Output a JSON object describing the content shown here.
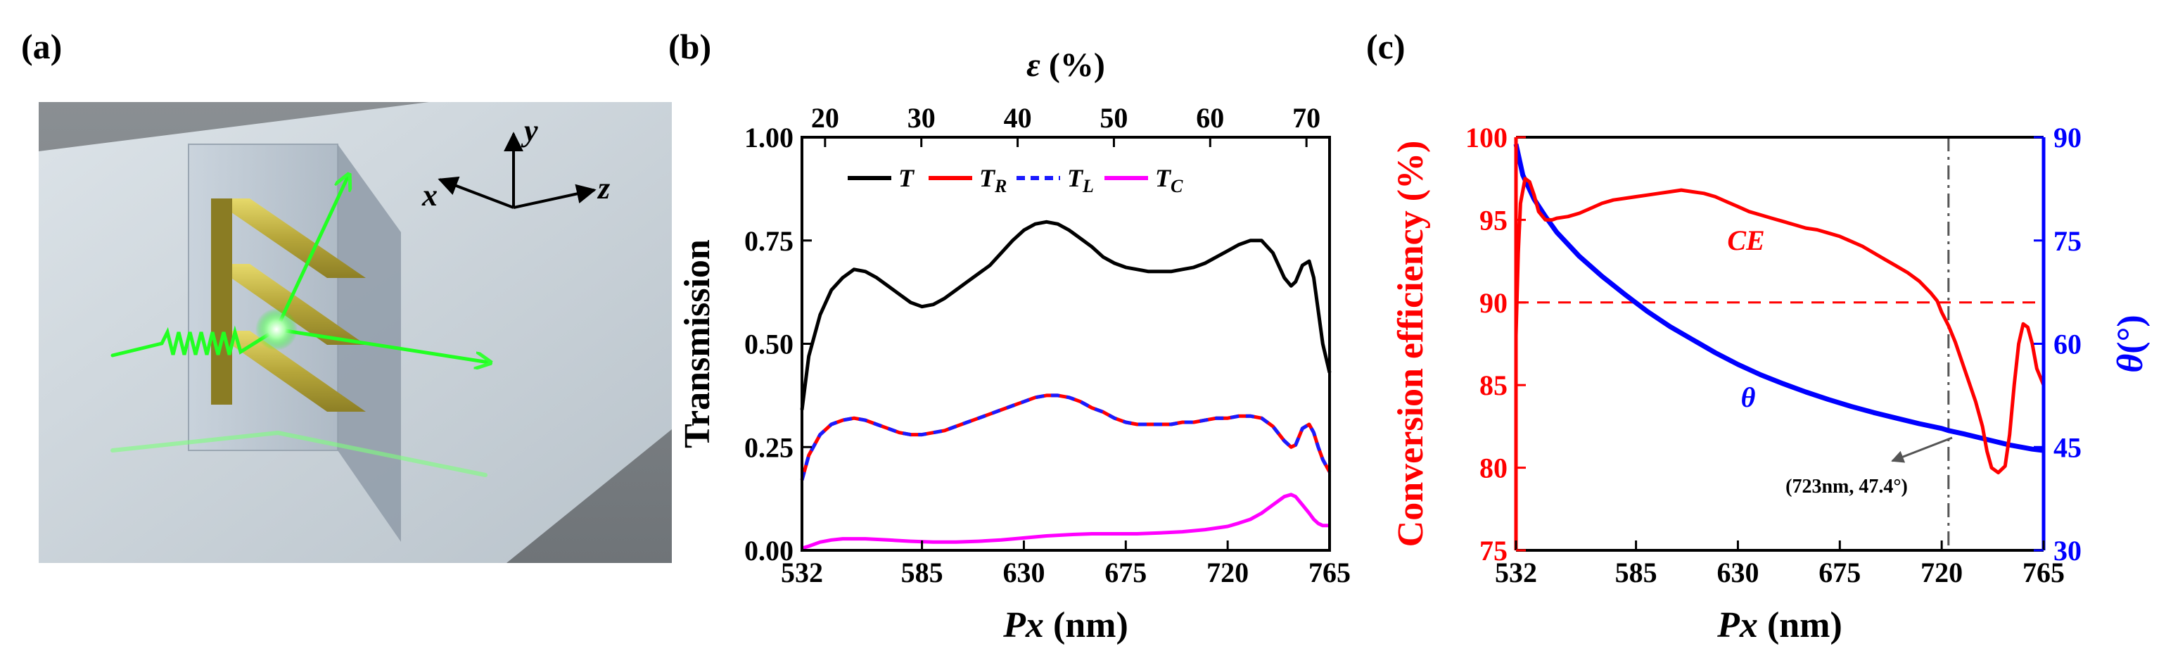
{
  "panels": {
    "a": {
      "label": "(a)",
      "axis_x": "x",
      "axis_y": "y",
      "axis_z": "z"
    },
    "b": {
      "label": "(b)"
    },
    "c": {
      "label": "(c)"
    }
  },
  "colors": {
    "T": "#000000",
    "TR": "#ff0000",
    "TL": "#1a1aff",
    "TC": "#ff00ff",
    "CE": "#ff0000",
    "theta": "#0000ff",
    "threshold": "#ff0000",
    "marker": "#555555"
  },
  "chart_data": [
    {
      "type": "line",
      "panel": "(b)",
      "xlabel_main": "Px",
      "xlabel_unit": "(nm)",
      "ylabel": "Transmission",
      "top_axis_label_symbol": "ε",
      "top_axis_label_unit": "(%)",
      "xlim": [
        532,
        765
      ],
      "ylim": [
        0,
        1
      ],
      "top_xlim": [
        17.6,
        72.4
      ],
      "x_ticks": [
        532,
        585,
        630,
        675,
        720,
        765
      ],
      "y_ticks": [
        "0.00",
        "0.25",
        "0.50",
        "0.75",
        "1.00"
      ],
      "top_ticks": [
        20,
        30,
        40,
        50,
        60,
        70
      ],
      "legend": [
        {
          "name": "T",
          "sub": ""
        },
        {
          "name": "T",
          "sub": "R"
        },
        {
          "name": "T",
          "sub": "L"
        },
        {
          "name": "T",
          "sub": "C"
        }
      ],
      "series": [
        {
          "name": "T",
          "x": [
            532,
            535,
            540,
            545,
            550,
            555,
            560,
            565,
            570,
            575,
            580,
            585,
            590,
            595,
            600,
            605,
            610,
            615,
            620,
            625,
            630,
            635,
            640,
            645,
            650,
            655,
            660,
            665,
            670,
            675,
            680,
            685,
            690,
            695,
            700,
            705,
            710,
            715,
            720,
            725,
            730,
            735,
            740,
            745,
            748,
            750,
            753,
            756,
            758,
            760,
            762,
            765
          ],
          "y": [
            0.34,
            0.47,
            0.57,
            0.63,
            0.66,
            0.68,
            0.675,
            0.66,
            0.64,
            0.62,
            0.6,
            0.59,
            0.595,
            0.61,
            0.63,
            0.65,
            0.67,
            0.69,
            0.72,
            0.75,
            0.775,
            0.79,
            0.795,
            0.79,
            0.775,
            0.755,
            0.735,
            0.71,
            0.695,
            0.685,
            0.68,
            0.675,
            0.675,
            0.675,
            0.68,
            0.685,
            0.695,
            0.71,
            0.725,
            0.74,
            0.75,
            0.75,
            0.72,
            0.66,
            0.64,
            0.65,
            0.69,
            0.7,
            0.66,
            0.58,
            0.5,
            0.43
          ]
        },
        {
          "name": "TR",
          "x": [
            532,
            535,
            540,
            545,
            550,
            555,
            560,
            565,
            570,
            575,
            580,
            585,
            590,
            595,
            600,
            605,
            610,
            615,
            620,
            625,
            630,
            635,
            640,
            645,
            650,
            655,
            660,
            665,
            670,
            675,
            680,
            685,
            690,
            695,
            700,
            705,
            710,
            715,
            720,
            725,
            730,
            735,
            740,
            745,
            748,
            750,
            753,
            756,
            758,
            760,
            762,
            765
          ],
          "y": [
            0.17,
            0.23,
            0.28,
            0.305,
            0.315,
            0.32,
            0.315,
            0.305,
            0.295,
            0.285,
            0.28,
            0.28,
            0.285,
            0.29,
            0.3,
            0.31,
            0.32,
            0.33,
            0.34,
            0.35,
            0.36,
            0.37,
            0.375,
            0.375,
            0.37,
            0.36,
            0.345,
            0.335,
            0.32,
            0.31,
            0.305,
            0.305,
            0.305,
            0.305,
            0.31,
            0.31,
            0.315,
            0.32,
            0.32,
            0.325,
            0.325,
            0.32,
            0.3,
            0.265,
            0.25,
            0.255,
            0.295,
            0.305,
            0.285,
            0.25,
            0.22,
            0.19
          ]
        },
        {
          "name": "TL",
          "x": [
            532,
            535,
            540,
            545,
            550,
            555,
            560,
            565,
            570,
            575,
            580,
            585,
            590,
            595,
            600,
            605,
            610,
            615,
            620,
            625,
            630,
            635,
            640,
            645,
            650,
            655,
            660,
            665,
            670,
            675,
            680,
            685,
            690,
            695,
            700,
            705,
            710,
            715,
            720,
            725,
            730,
            735,
            740,
            745,
            748,
            750,
            753,
            756,
            758,
            760,
            762,
            765
          ],
          "y": [
            0.17,
            0.23,
            0.28,
            0.305,
            0.315,
            0.32,
            0.315,
            0.305,
            0.295,
            0.285,
            0.28,
            0.28,
            0.285,
            0.29,
            0.3,
            0.31,
            0.32,
            0.33,
            0.34,
            0.35,
            0.36,
            0.37,
            0.375,
            0.375,
            0.37,
            0.36,
            0.345,
            0.335,
            0.32,
            0.31,
            0.305,
            0.305,
            0.305,
            0.305,
            0.31,
            0.31,
            0.315,
            0.32,
            0.32,
            0.325,
            0.325,
            0.32,
            0.3,
            0.265,
            0.25,
            0.255,
            0.295,
            0.305,
            0.285,
            0.25,
            0.22,
            0.19
          ]
        },
        {
          "name": "TC",
          "x": [
            532,
            535,
            540,
            545,
            550,
            560,
            570,
            580,
            590,
            600,
            610,
            620,
            630,
            640,
            650,
            660,
            670,
            680,
            690,
            700,
            710,
            720,
            725,
            730,
            735,
            740,
            745,
            748,
            750,
            753,
            756,
            758,
            760,
            762,
            765
          ],
          "y": [
            0.005,
            0.01,
            0.02,
            0.025,
            0.028,
            0.028,
            0.025,
            0.022,
            0.02,
            0.02,
            0.022,
            0.025,
            0.03,
            0.035,
            0.038,
            0.04,
            0.04,
            0.04,
            0.042,
            0.045,
            0.05,
            0.058,
            0.066,
            0.075,
            0.09,
            0.11,
            0.13,
            0.135,
            0.13,
            0.11,
            0.09,
            0.075,
            0.065,
            0.06,
            0.06
          ]
        }
      ]
    },
    {
      "type": "line",
      "panel": "(c)",
      "xlabel_main": "Px",
      "xlabel_unit": "(nm)",
      "ylabel_left": "Conversion efficiency (%)",
      "ylabel_right_symbol": "θ",
      "ylabel_right_unit": "(°)",
      "xlim": [
        532,
        765
      ],
      "ylim_left": [
        75,
        100
      ],
      "ylim_right": [
        30,
        90
      ],
      "x_ticks": [
        532,
        585,
        630,
        675,
        720,
        765
      ],
      "y_ticks_left": [
        75,
        80,
        85,
        90,
        95,
        100
      ],
      "y_ticks_right": [
        30,
        45,
        60,
        75,
        90
      ],
      "threshold_CE": 90,
      "vline_x": 723,
      "annotation": "(723nm, 47.4°)",
      "label_CE": "CE",
      "label_theta": "θ",
      "series": [
        {
          "name": "CE",
          "axis": "left",
          "x": [
            532,
            533,
            534,
            536,
            538,
            540,
            542,
            545,
            548,
            550,
            555,
            560,
            565,
            570,
            575,
            580,
            585,
            590,
            595,
            600,
            605,
            610,
            615,
            620,
            625,
            630,
            635,
            640,
            645,
            650,
            655,
            660,
            665,
            670,
            675,
            680,
            685,
            690,
            695,
            700,
            705,
            710,
            715,
            718,
            720,
            723,
            726,
            730,
            735,
            738,
            740,
            742,
            745,
            748,
            750,
            752,
            754,
            756,
            758,
            760,
            762,
            765
          ],
          "y": [
            88,
            93,
            96,
            97.5,
            97.3,
            96.5,
            95.5,
            95,
            95,
            95.1,
            95.2,
            95.4,
            95.7,
            96,
            96.2,
            96.3,
            96.4,
            96.5,
            96.6,
            96.7,
            96.8,
            96.7,
            96.6,
            96.4,
            96.1,
            95.8,
            95.5,
            95.3,
            95.1,
            94.9,
            94.7,
            94.5,
            94.4,
            94.2,
            94,
            93.7,
            93.4,
            93,
            92.6,
            92.2,
            91.8,
            91.3,
            90.6,
            90.1,
            89.4,
            88.6,
            87.6,
            86,
            84,
            82.5,
            81,
            80,
            79.7,
            80.1,
            82,
            85,
            87.5,
            88.7,
            88.5,
            87.5,
            86,
            85
          ]
        },
        {
          "name": "theta",
          "axis": "right",
          "x": [
            532,
            535,
            540,
            545,
            550,
            560,
            570,
            580,
            590,
            600,
            610,
            620,
            630,
            640,
            650,
            660,
            670,
            680,
            690,
            700,
            710,
            720,
            723,
            730,
            740,
            750,
            760,
            765
          ],
          "y": [
            89,
            84.5,
            81,
            78.5,
            76.2,
            72.7,
            69.8,
            67.2,
            64.7,
            62.5,
            60.6,
            58.7,
            57,
            55.5,
            54.2,
            53,
            51.9,
            50.9,
            50,
            49.2,
            48.4,
            47.7,
            47.4,
            46.9,
            46.1,
            45.3,
            44.7,
            44.5
          ]
        }
      ]
    }
  ]
}
